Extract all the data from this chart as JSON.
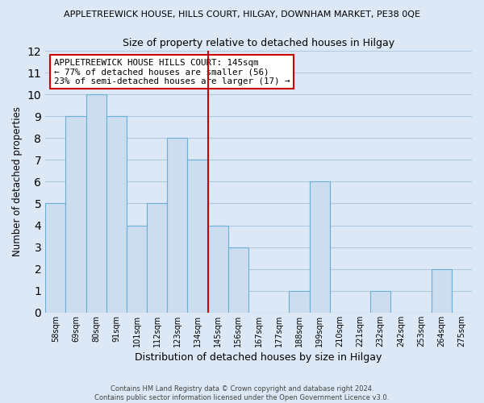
{
  "title": "APPLETREEWICK HOUSE, HILLS COURT, HILGAY, DOWNHAM MARKET, PE38 0QE",
  "subtitle": "Size of property relative to detached houses in Hilgay",
  "xlabel": "Distribution of detached houses by size in Hilgay",
  "ylabel": "Number of detached properties",
  "bar_labels": [
    "58sqm",
    "69sqm",
    "80sqm",
    "91sqm",
    "101sqm",
    "112sqm",
    "123sqm",
    "134sqm",
    "145sqm",
    "156sqm",
    "167sqm",
    "177sqm",
    "188sqm",
    "199sqm",
    "210sqm",
    "221sqm",
    "232sqm",
    "242sqm",
    "253sqm",
    "264sqm",
    "275sqm"
  ],
  "bar_values": [
    5,
    9,
    10,
    9,
    4,
    5,
    8,
    7,
    4,
    3,
    0,
    0,
    1,
    6,
    0,
    0,
    1,
    0,
    0,
    2,
    0
  ],
  "bar_color": "#ccddf0",
  "bar_edge_color": "#6baed6",
  "red_line_x": 7.5,
  "red_line_color": "#cc0000",
  "ylim": [
    0,
    12
  ],
  "yticks": [
    0,
    1,
    2,
    3,
    4,
    5,
    6,
    7,
    8,
    9,
    10,
    11,
    12
  ],
  "annotation_line1": "APPLETREEWICK HOUSE HILLS COURT: 145sqm",
  "annotation_line2": "← 77% of detached houses are smaller (56)",
  "annotation_line3": "23% of semi-detached houses are larger (17) →",
  "annotation_box_color": "#ffffff",
  "annotation_box_edge_color": "#cc0000",
  "grid_color": "#b0c8e0",
  "background_color": "#dce8f5",
  "footer_line1": "Contains HM Land Registry data © Crown copyright and database right 2024.",
  "footer_line2": "Contains public sector information licensed under the Open Government Licence v3.0."
}
